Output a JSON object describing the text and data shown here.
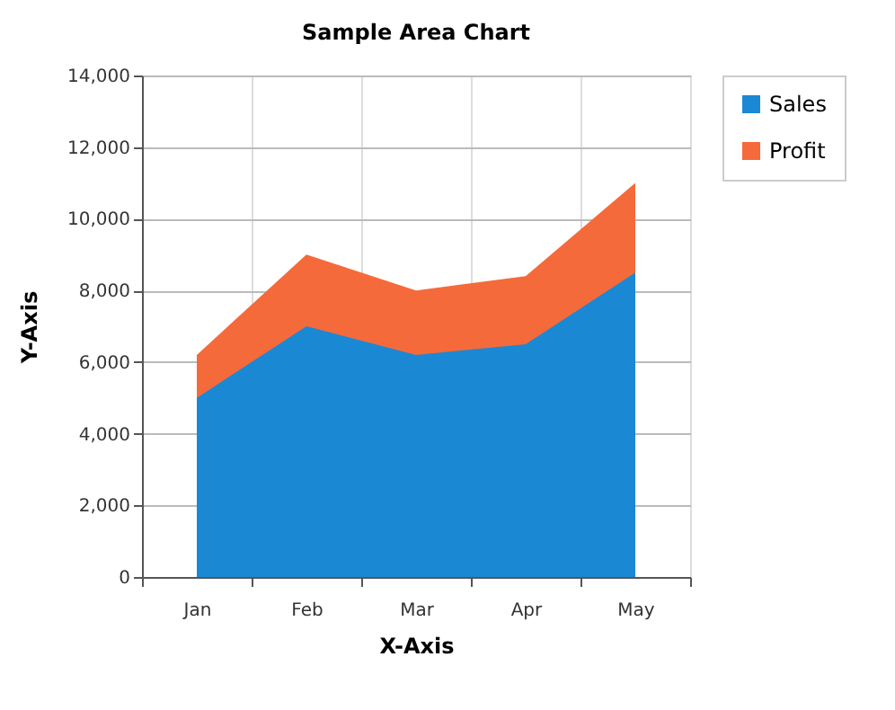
{
  "chart_data": {
    "type": "area",
    "title": "Sample Area Chart",
    "xlabel": "X-Axis",
    "ylabel": "Y-Axis",
    "categories": [
      "Jan",
      "Feb",
      "Mar",
      "Apr",
      "May"
    ],
    "series": [
      {
        "name": "Sales",
        "color": "#1b88d4",
        "values": [
          5000,
          7000,
          6200,
          6500,
          8500
        ]
      },
      {
        "name": "Profit",
        "color": "#f56a3a",
        "values": [
          6200,
          9000,
          8000,
          8400,
          11000
        ]
      }
    ],
    "ylim": [
      0,
      14000
    ],
    "yticks": [
      0,
      {
        "value": 2000,
        "label": "2,000"
      },
      {
        "value": 4000,
        "label": "4,000"
      },
      {
        "value": 6000,
        "label": "6,000"
      },
      {
        "value": 8000,
        "label": "8,000"
      },
      {
        "value": 10000,
        "label": "10,000"
      },
      {
        "value": 12000,
        "label": "12,000"
      },
      {
        "value": 14000,
        "label": "14,000"
      }
    ],
    "grid": true,
    "legend": "top right"
  }
}
